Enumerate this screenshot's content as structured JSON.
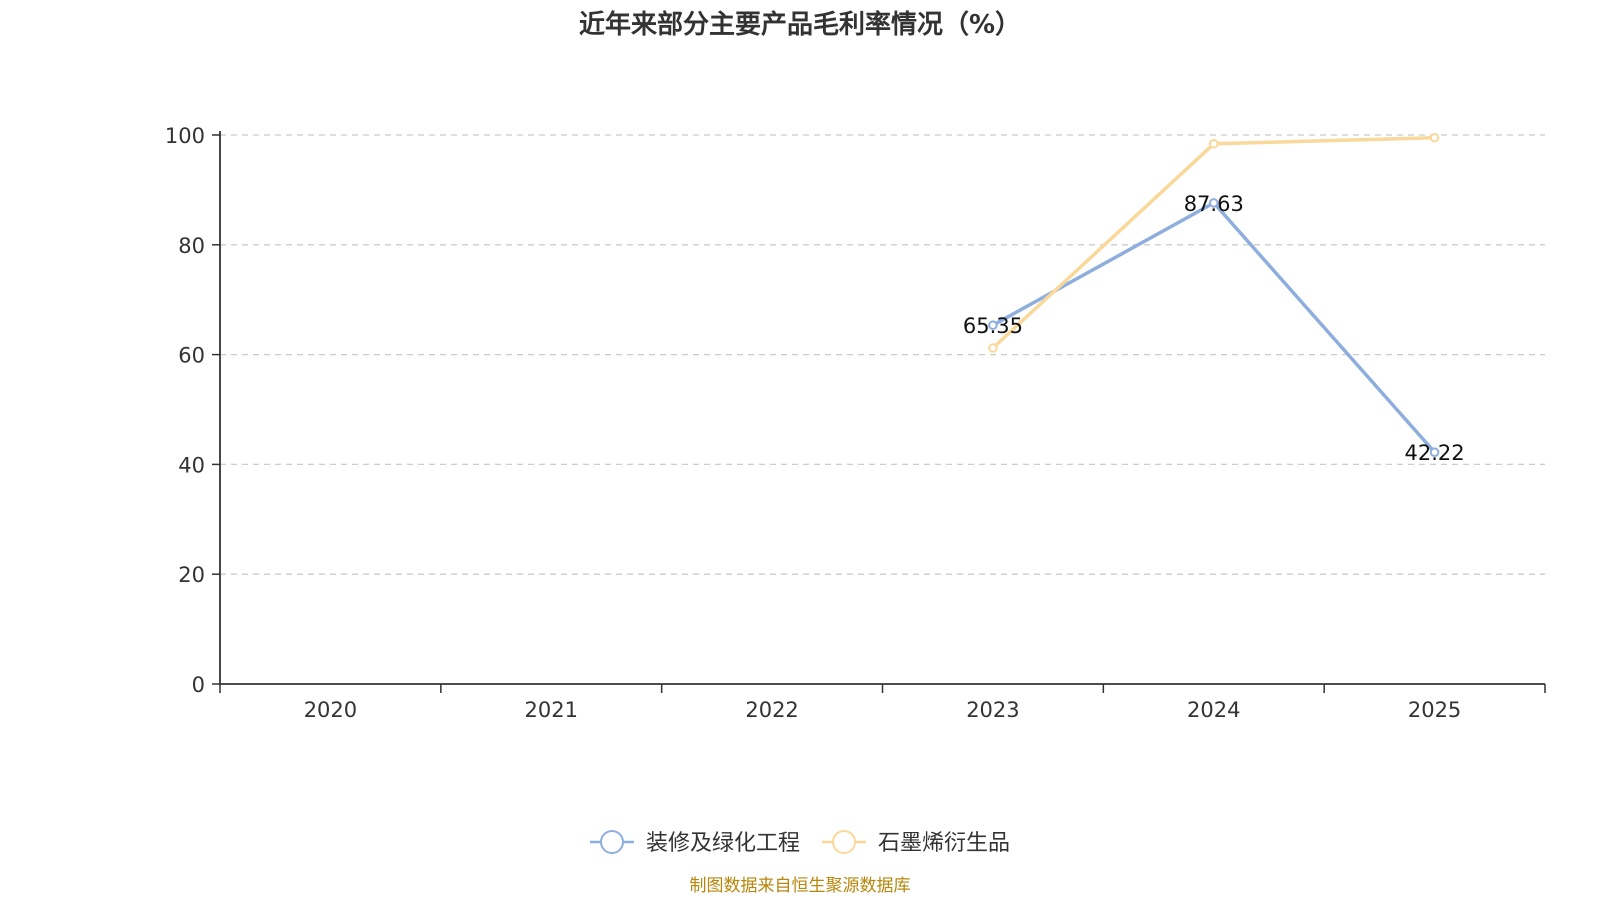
{
  "chart_data": {
    "type": "line",
    "title": "近年来部分主要产品毛利率情况（%）",
    "categories": [
      "2020",
      "2021",
      "2022",
      "2023",
      "2024",
      "2025"
    ],
    "ylim": [
      0,
      100
    ],
    "yticks": [
      0,
      20,
      40,
      60,
      80,
      100
    ],
    "grid": true,
    "legend_position": "bottom-center",
    "series": [
      {
        "name": "装修及绿化工程",
        "color": "#8eaedd",
        "values": [
          null,
          null,
          null,
          65.35,
          87.63,
          42.22
        ],
        "labels": [
          null,
          null,
          null,
          "65.35",
          "87.63",
          "42.22"
        ]
      },
      {
        "name": "石墨烯衍生品",
        "color": "#f9d899",
        "values": [
          null,
          null,
          null,
          61.2,
          98.4,
          99.5
        ],
        "labels": [
          null,
          null,
          null,
          null,
          null,
          null
        ]
      }
    ]
  },
  "source": "制图数据来自恒生聚源数据库"
}
